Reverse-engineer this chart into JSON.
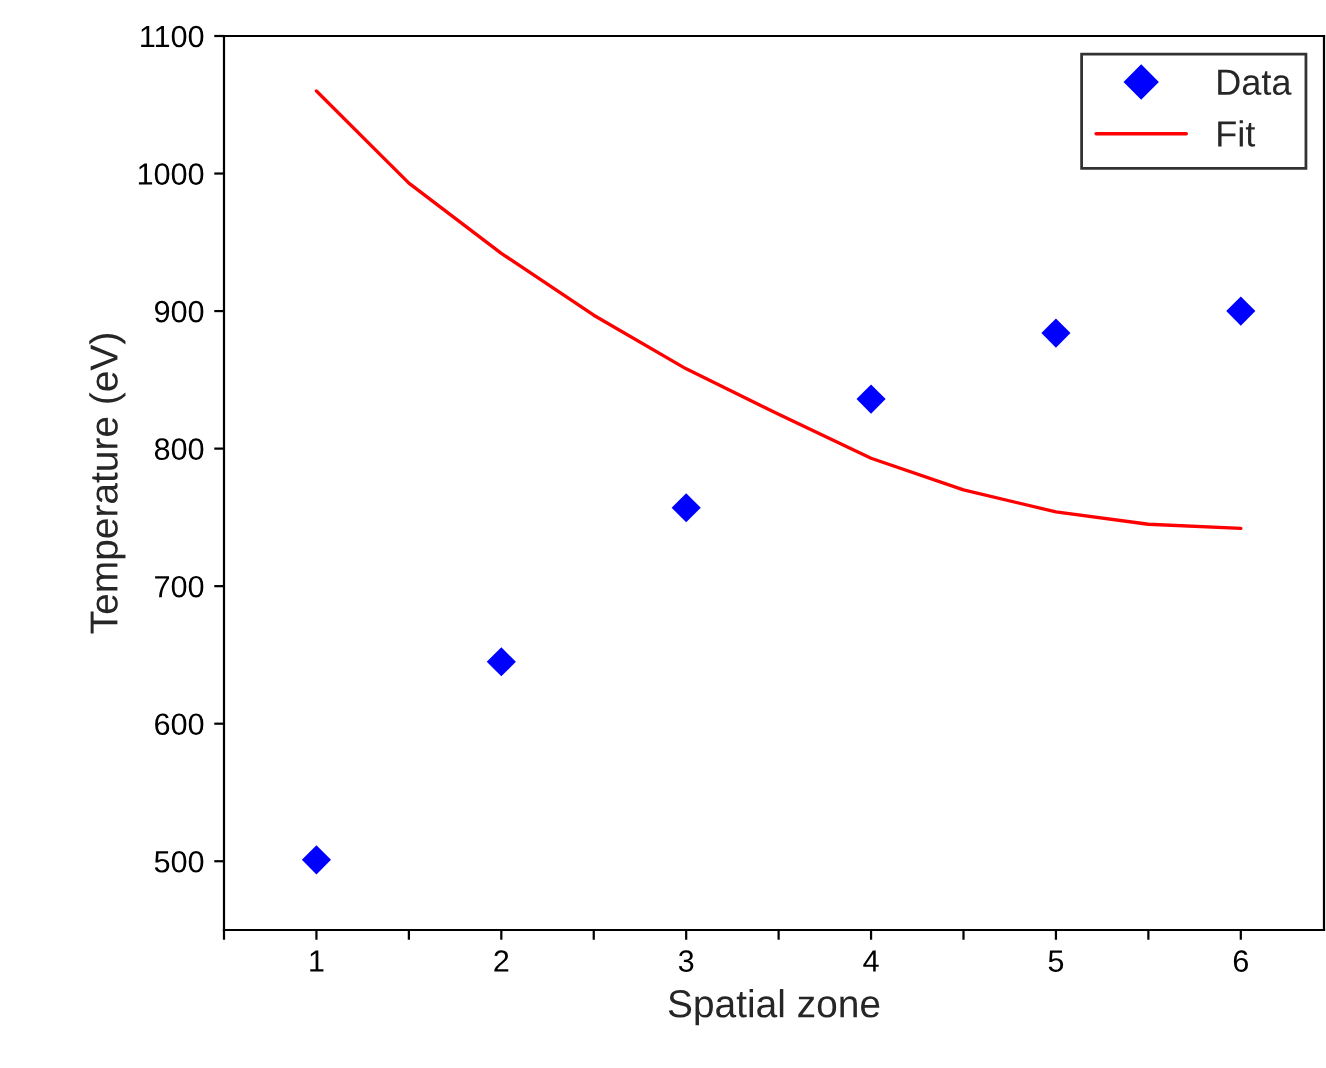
{
  "chart_data": {
    "type": "scatter",
    "xlabel": "Spatial zone",
    "ylabel": "Temperature (eV)",
    "series": [
      {
        "name": "Data",
        "color": "#0000ff",
        "marker": "diamond",
        "x": [
          1,
          2,
          3,
          4,
          5,
          6
        ],
        "values": [
          501,
          645,
          757,
          836,
          884,
          900
        ]
      },
      {
        "name": "Fit",
        "type": "line",
        "color": "#ff0000",
        "marker": "none",
        "line_style": "solid",
        "x": [
          1,
          1.5,
          2,
          2.5,
          3,
          3.5,
          4,
          4.5,
          5,
          5.5,
          6
        ],
        "values": [
          1060,
          993,
          942,
          897,
          858,
          825,
          793,
          770,
          754,
          745,
          742
        ]
      }
    ],
    "xlim": [
      0.5,
      6.45
    ],
    "ylim": [
      450,
      1100
    ],
    "xticks": [
      {
        "value": 0.5,
        "label": null
      },
      1,
      {
        "value": 1.5,
        "label": null
      },
      2,
      {
        "value": 2.5,
        "label": null
      },
      3,
      {
        "value": 3.5,
        "label": null
      },
      4,
      {
        "value": 4.5,
        "label": null
      },
      5,
      {
        "value": 5.5,
        "label": null
      },
      6
    ],
    "yticks": [
      500,
      600,
      700,
      800,
      900,
      1000,
      1100
    ],
    "grid": false,
    "legend": "top right"
  }
}
